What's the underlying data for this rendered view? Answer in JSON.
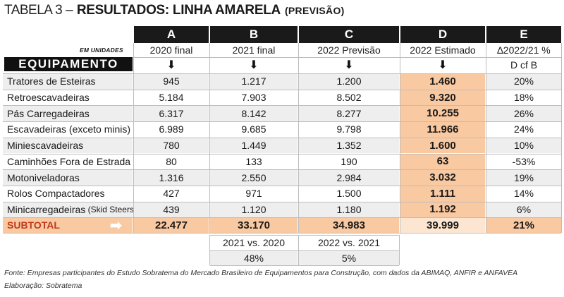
{
  "title": {
    "prefix": "TABELA 3",
    "dash": "–",
    "main": "RESULTADOS: LINHA AMARELA",
    "suffix": "(PREVISÃO)"
  },
  "columns": {
    "letters": [
      "A",
      "B",
      "C",
      "D",
      "E"
    ],
    "years": [
      "2020 final",
      "2021 final",
      "2022 Previsão",
      "2022 Estimado",
      "∆2022/21 %"
    ],
    "e_sub": "D cf B"
  },
  "unit_label": "EM UNIDADES",
  "equip_label": "EQUIPAMENTO",
  "rows": [
    {
      "label": "Tratores de Esteiras",
      "label_suffix": "",
      "a": "945",
      "b": "1.217",
      "c": "1.200",
      "d": "1.460",
      "e": "20%"
    },
    {
      "label": "Retroescavadeiras",
      "label_suffix": "",
      "a": "5.184",
      "b": "7.903",
      "c": "8.502",
      "d": "9.320",
      "e": "18%"
    },
    {
      "label": "Pás Carregadeiras",
      "label_suffix": "",
      "a": "6.317",
      "b": "8.142",
      "c": "8.277",
      "d": "10.255",
      "e": "26%"
    },
    {
      "label": "Escavadeiras (exceto minis)",
      "label_suffix": "",
      "a": "6.989",
      "b": "9.685",
      "c": "9.798",
      "d": "11.966",
      "e": "24%"
    },
    {
      "label": "Miniescavadeiras",
      "label_suffix": "",
      "a": "780",
      "b": "1.449",
      "c": "1.352",
      "d": "1.600",
      "e": "10%"
    },
    {
      "label": "Caminhões Fora de Estrada",
      "label_suffix": "",
      "a": "80",
      "b": "133",
      "c": "190",
      "d": "63",
      "e": "-53%"
    },
    {
      "label": "Motoniveladoras",
      "label_suffix": "",
      "a": "1.316",
      "b": "2.550",
      "c": "2.984",
      "d": "3.032",
      "e": "19%"
    },
    {
      "label": "Rolos Compactadores",
      "label_suffix": "",
      "a": "427",
      "b": "971",
      "c": "1.500",
      "d": "1.111",
      "e": "14%"
    },
    {
      "label": "Minicarregadeiras",
      "label_suffix": " (Skid Steers)",
      "a": "439",
      "b": "1.120",
      "c": "1.180",
      "d": "1.192",
      "e": "6%"
    }
  ],
  "subtotal": {
    "label": "SUBTOTAL",
    "a": "22.477",
    "b": "33.170",
    "c": "34.983",
    "d": "39.999",
    "e": "21%"
  },
  "comparison": {
    "b_label": "2021 vs. 2020",
    "b_value": "48%",
    "c_label": "2022 vs. 2021",
    "c_value": "5%"
  },
  "footer": {
    "source": "Fonte: Empresas participantes do Estudo Sobratema do Mercado Brasileiro de Equipamentos para Construção, com dados da ABIMAQ, ANFIR e ANFAVEA",
    "credit": "Elaboração: Sobratema"
  },
  "icons": {
    "down_arrow": "down-arrow-icon",
    "right_arrow": "right-arrow-icon"
  },
  "colors": {
    "highlight": "#f9c9a2",
    "header_bg": "#1a1a1a",
    "stripe": "#eeeeee"
  }
}
